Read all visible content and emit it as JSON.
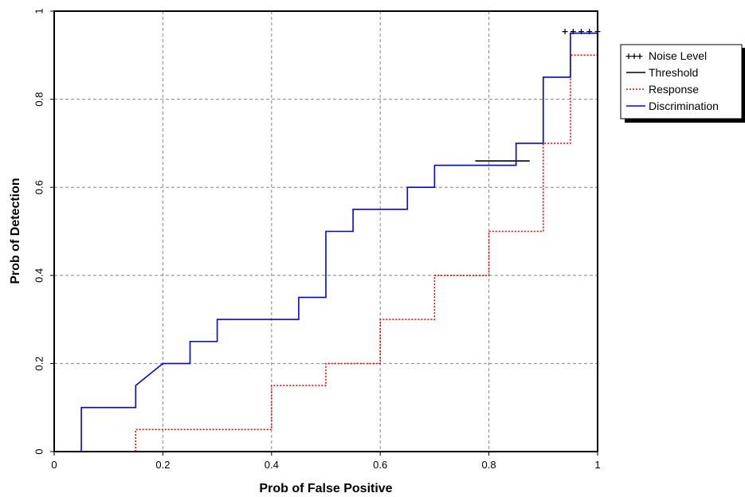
{
  "chart_data": {
    "type": "line",
    "xlabel": "Prob of False Positive",
    "ylabel": "Prob of Detection",
    "xlim": [
      0,
      1
    ],
    "ylim": [
      0,
      1
    ],
    "x_ticks": [
      0,
      0.2,
      0.4,
      0.6,
      0.8,
      1
    ],
    "y_ticks": [
      0,
      0.2,
      0.4,
      0.6,
      0.8,
      1
    ],
    "x_tick_labels": [
      "0",
      "0.2",
      "0.4",
      "0.6",
      "0.8",
      "1"
    ],
    "y_tick_labels": [
      "0",
      "0.2",
      "0.4",
      "0.6",
      "0.8",
      "1"
    ],
    "grid": true,
    "legend_position": "right",
    "series": [
      {
        "name": "Noise Level",
        "style": "dotted-markers",
        "color": "#000000",
        "x": [
          0.94,
          0.955,
          0.97,
          0.985,
          1.0
        ],
        "y": [
          0.955,
          0.955,
          0.955,
          0.955,
          0.955
        ]
      },
      {
        "name": "Threshold",
        "style": "solid",
        "color": "#000000",
        "x": [
          0.775,
          0.875
        ],
        "y": [
          0.66,
          0.66
        ]
      },
      {
        "name": "Response",
        "style": "dotted",
        "color": "#ff0000",
        "x": [
          0.15,
          0.15,
          0.2,
          0.4,
          0.4,
          0.5,
          0.5,
          0.6,
          0.6,
          0.7,
          0.7,
          0.8,
          0.8,
          0.9,
          0.9,
          0.95,
          0.95,
          1.0,
          1.0
        ],
        "y": [
          0.0,
          0.05,
          0.05,
          0.05,
          0.15,
          0.15,
          0.2,
          0.2,
          0.3,
          0.3,
          0.4,
          0.4,
          0.5,
          0.5,
          0.7,
          0.7,
          0.9,
          0.9,
          0.95
        ]
      },
      {
        "name": "Discrimination",
        "style": "solid",
        "color": "#0000ff",
        "x": [
          0.05,
          0.05,
          0.15,
          0.15,
          0.2,
          0.25,
          0.25,
          0.3,
          0.3,
          0.45,
          0.45,
          0.5,
          0.5,
          0.55,
          0.55,
          0.65,
          0.65,
          0.7,
          0.7,
          0.85,
          0.85,
          0.9,
          0.9,
          0.95,
          0.95,
          1.0
        ],
        "y": [
          0.0,
          0.1,
          0.1,
          0.15,
          0.2,
          0.2,
          0.25,
          0.25,
          0.3,
          0.3,
          0.35,
          0.35,
          0.5,
          0.5,
          0.55,
          0.55,
          0.6,
          0.6,
          0.65,
          0.65,
          0.7,
          0.7,
          0.85,
          0.85,
          0.95,
          0.95
        ]
      }
    ]
  }
}
